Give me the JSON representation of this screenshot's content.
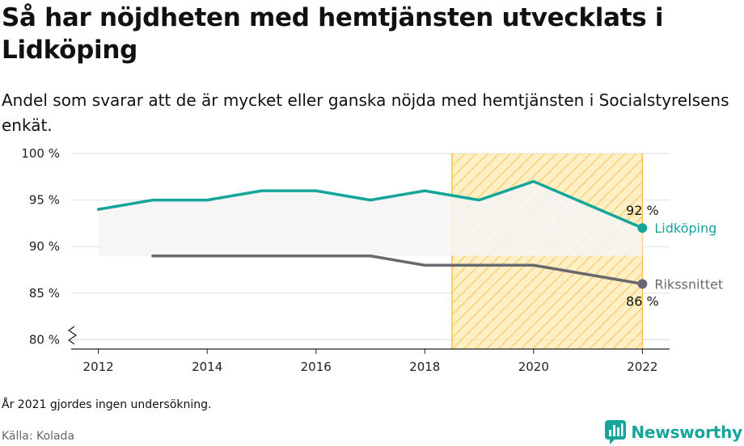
{
  "title": "Så har nöjdheten med hemtjänsten utvecklats i Lidköping",
  "subtitle": "Andel som svarar att de är mycket eller ganska nöjda med hemtjänsten i Socialstyrelsens enkät.",
  "note": "År 2021 gjordes ingen undersökning.",
  "source": "Källa: Kolada",
  "brand": "Newsworthy",
  "colors": {
    "primary": "#16a59a",
    "secondary": "#6b6970",
    "highlight_fill": "#fde9b3",
    "highlight_stroke": "#f6c445",
    "band": "#f5f5f5",
    "grid": "#dddddd"
  },
  "chart_data": {
    "type": "line",
    "ylim": [
      79,
      100
    ],
    "y_ticks": [
      80,
      85,
      90,
      95,
      100
    ],
    "y_tick_labels": [
      "80 %",
      "85 %",
      "90 %",
      "95 %",
      "100 %"
    ],
    "xlim": [
      2011.5,
      2022.5
    ],
    "x_ticks": [
      2012,
      2014,
      2016,
      2018,
      2020,
      2022
    ],
    "x_tick_labels": [
      "2012",
      "2014",
      "2016",
      "2018",
      "2020",
      "2022"
    ],
    "y_axis_break": true,
    "grid": "horizontal",
    "highlight_region": [
      2018.5,
      2022
    ],
    "band_series": "Lidköping",
    "series": [
      {
        "name": "Lidköping",
        "color": "#16a59a",
        "x": [
          2012,
          2013,
          2014,
          2015,
          2016,
          2017,
          2018,
          2019,
          2020,
          2022
        ],
        "y": [
          94,
          95,
          95,
          96,
          96,
          95,
          96,
          95,
          97,
          92
        ],
        "end_label": "92 %"
      },
      {
        "name": "Rikssnittet",
        "color": "#6b6970",
        "x": [
          2013,
          2014,
          2015,
          2016,
          2017,
          2018,
          2019,
          2020,
          2022
        ],
        "y": [
          89,
          89,
          89,
          89,
          89,
          88,
          88,
          88,
          86
        ],
        "end_label": "86 %"
      }
    ]
  }
}
